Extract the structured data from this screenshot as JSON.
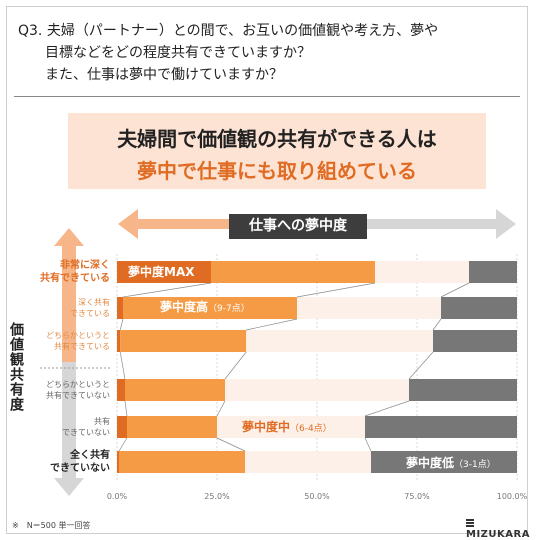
{
  "question": {
    "line1": "Q3. 夫婦（パートナー）との間で、お互いの価値観や考え方、夢や",
    "line2": "目標などをどの程度共有できていますか？",
    "line3": "また、仕事は夢中で働けていますか？"
  },
  "headline": {
    "line1_accent": "夫婦間で価値観の共有ができる人",
    "line1_tail": "は",
    "line2_accent": "夢中で仕事にも取り組めている"
  },
  "axis_title": "仕事への夢中度",
  "value_axis_label": "価値観共有度",
  "footnote": "※　N＝500 単一回答",
  "brand": "MIZUKARA",
  "colors": {
    "max": "#e06b23",
    "high": "#f59a45",
    "mid": "#fdf0e8",
    "low": "#777777",
    "accent": "#e06b23",
    "arrow_orange": "#f7b58a",
    "arrow_gray": "#d6d6d6"
  },
  "chart_data": {
    "type": "bar",
    "orientation": "horizontal",
    "stacked": true,
    "percent_axis": true,
    "xlim": [
      0,
      100
    ],
    "ticks": [
      "0.0%",
      "25.0%",
      "50.0%",
      "75.0%",
      "100.0%"
    ],
    "categories": [
      {
        "line1": "非常に深く",
        "line2": "共有できている"
      },
      {
        "line1": "深く共有",
        "line2": "できている"
      },
      {
        "line1": "どちらかというと",
        "line2": "共有できている"
      },
      {
        "line1": "どちらかというと",
        "line2": "共有できていない"
      },
      {
        "line1": "共有",
        "line2": "できていない"
      },
      {
        "line1": "全く共有",
        "line2": "できていない"
      }
    ],
    "series": [
      {
        "name": "夢中度MAX",
        "sub": "",
        "values": [
          23.5,
          1.5,
          0.8,
          2.0,
          2.5,
          0.5
        ]
      },
      {
        "name": "夢中度高",
        "sub": "（9-7点）",
        "values": [
          41.0,
          43.5,
          31.5,
          25.0,
          22.5,
          31.5
        ]
      },
      {
        "name": "夢中度中",
        "sub": "（6-4点）",
        "values": [
          23.5,
          36.0,
          46.7,
          46.0,
          37.0,
          31.5
        ]
      },
      {
        "name": "夢中度低",
        "sub": "（3-1点）",
        "values": [
          12.0,
          19.0,
          21.0,
          27.0,
          38.0,
          36.5
        ]
      }
    ]
  }
}
